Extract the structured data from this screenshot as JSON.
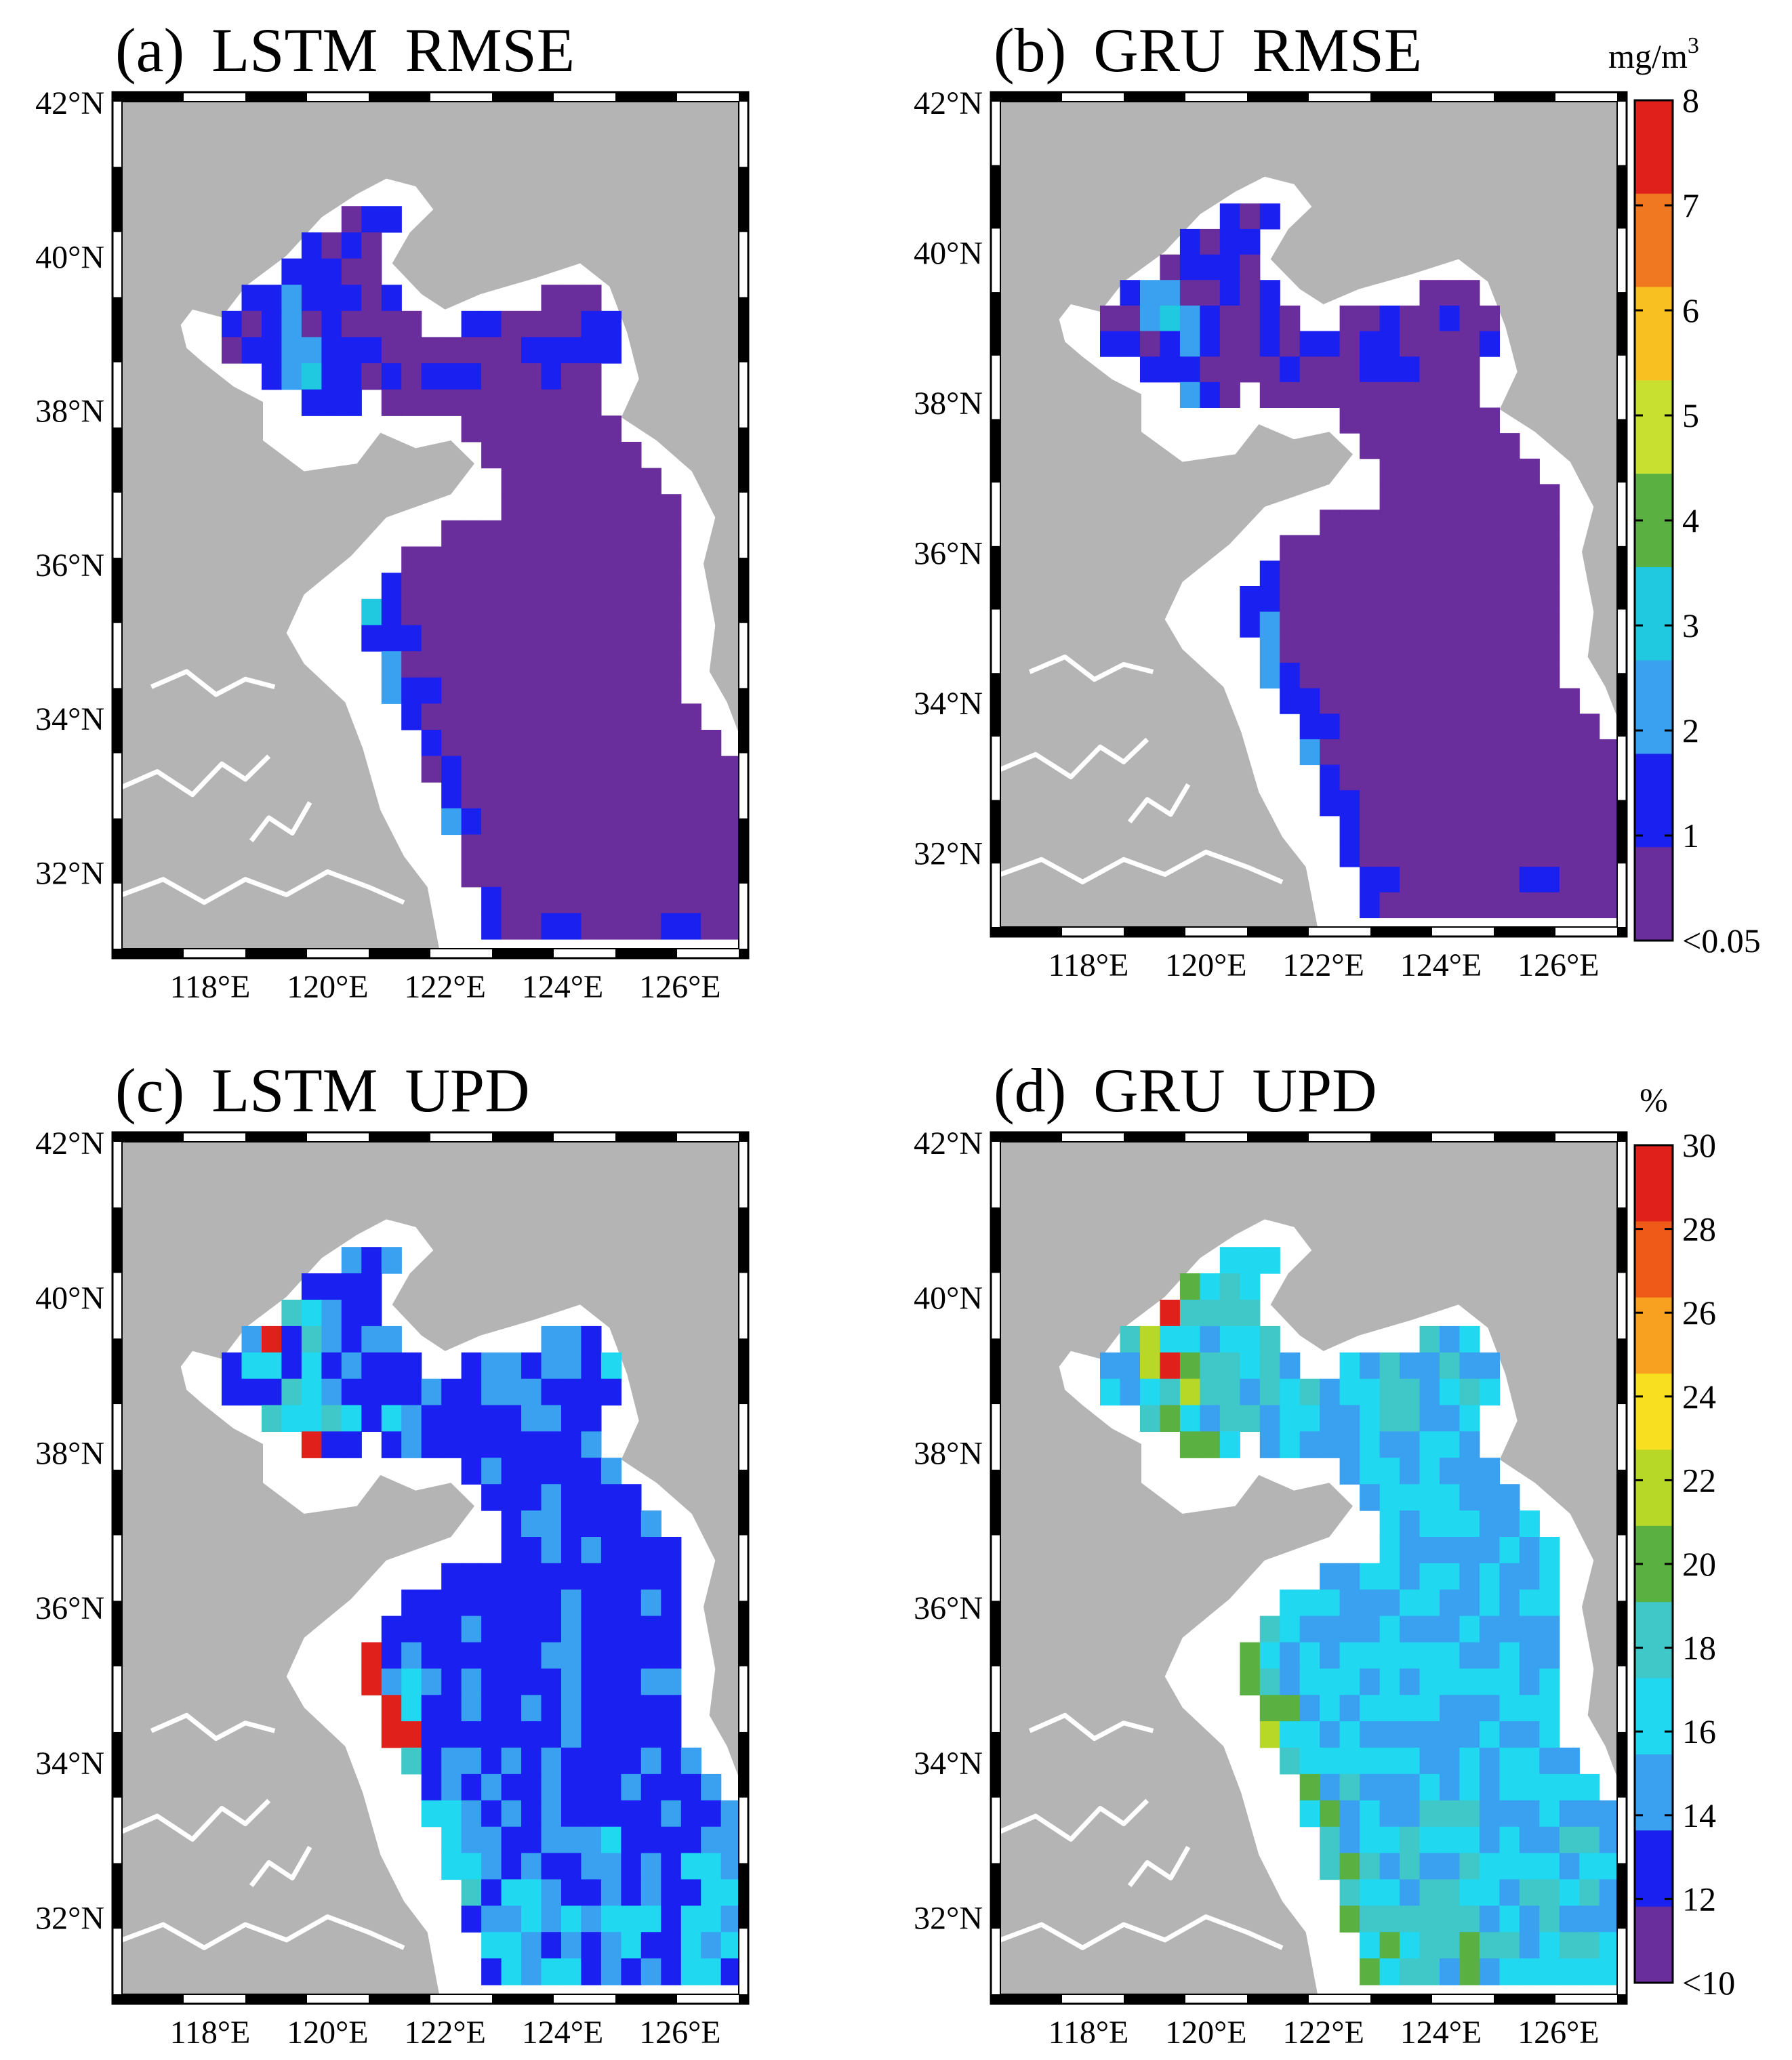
{
  "panels": [
    {
      "letter": "(a)",
      "model": "LSTM",
      "metric": "RMSE",
      "colorbar": "rmse",
      "fieldSeed": 11
    },
    {
      "letter": "(b)",
      "model": "GRU",
      "metric": "RMSE",
      "colorbar": "rmse",
      "fieldSeed": 23
    },
    {
      "letter": "(c)",
      "model": "LSTM",
      "metric": "UPD",
      "colorbar": "upd",
      "fieldSeed": 37
    },
    {
      "letter": "(d)",
      "model": "GRU",
      "metric": "UPD",
      "colorbar": "upd",
      "fieldSeed": 53
    }
  ],
  "map": {
    "lon_range": [
      116.5,
      127.0
    ],
    "lat_range": [
      31.0,
      42.0
    ],
    "lat_ticks": [
      "42°N",
      "40°N",
      "38°N",
      "36°N",
      "34°N",
      "32°N"
    ],
    "lat_tick_values": [
      42,
      40,
      38,
      36,
      34,
      32
    ],
    "lon_ticks": [
      "118°E",
      "120°E",
      "122°E",
      "124°E",
      "126°E"
    ],
    "lon_tick_values": [
      118,
      120,
      122,
      124,
      126
    ],
    "land_color": "#b4b4b4",
    "shelf_color": "#ffffff",
    "sea_base_color": "#6a2d9c"
  },
  "colorbars": {
    "rmse": {
      "unit_base": "mg/m",
      "unit_exp": "3",
      "labels": [
        "8",
        "7",
        "6",
        "5",
        "4",
        "3",
        "2",
        "1",
        "<0.05"
      ],
      "max": 8,
      "min": 0.05,
      "colors": [
        "#e0201a",
        "#f07820",
        "#f8c020",
        "#c8e030",
        "#5ab040",
        "#20c8e0",
        "#3aa0f0",
        "#1a20f0",
        "#6a2d9c"
      ]
    },
    "upd": {
      "unit": "%",
      "labels": [
        "30",
        "28",
        "26",
        "24",
        "22",
        "20",
        "18",
        "16",
        "14",
        "12",
        "<10"
      ],
      "max": 30,
      "min": 10,
      "colors": [
        "#e0201a",
        "#f05a18",
        "#f8a020",
        "#f8e020",
        "#b8d828",
        "#5ab040",
        "#40c8c8",
        "#20d8f0",
        "#3aa0f0",
        "#1a20f0",
        "#6a2d9c"
      ]
    }
  }
}
